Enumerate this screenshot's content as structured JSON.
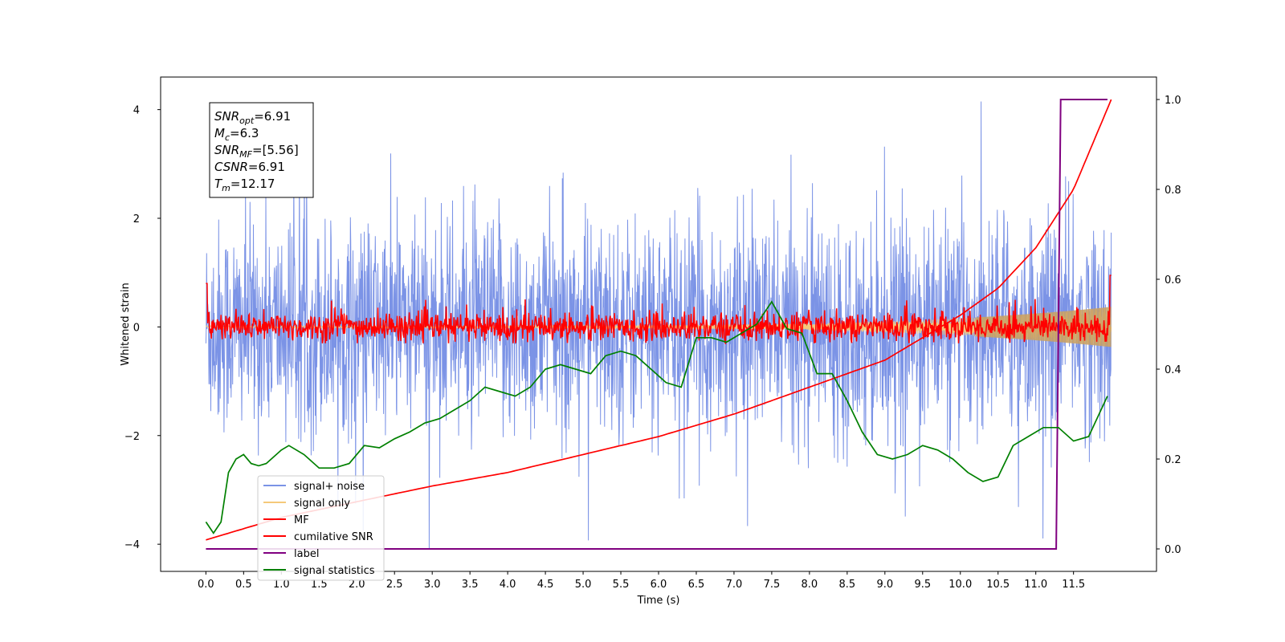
{
  "chart_data": {
    "type": "line",
    "xlabel": "Time (s)",
    "ylabel": "Whitened strain",
    "ylabel_right": "",
    "xlim": [
      -0.6,
      12.6
    ],
    "ylim": [
      -4.5,
      4.6
    ],
    "ylim_right": [
      -0.05,
      1.05
    ],
    "x_ticks": [
      "0.0",
      "0.5",
      "1.0",
      "1.5",
      "2.0",
      "2.5",
      "3.0",
      "3.5",
      "4.0",
      "4.5",
      "5.0",
      "5.5",
      "6.0",
      "6.5",
      "7.0",
      "7.5",
      "8.0",
      "8.5",
      "9.0",
      "9.5",
      "10.0",
      "10.5",
      "11.0",
      "11.5"
    ],
    "y_ticks": [
      "−4",
      "−2",
      "0",
      "2",
      "4"
    ],
    "y_ticks_right": [
      "0.0",
      "0.2",
      "0.4",
      "0.6",
      "0.8",
      "1.0"
    ],
    "grid": false,
    "legend_position": "lower-left",
    "stats_box": [
      {
        "sym": "SNR",
        "sub": "opt",
        "val": "=6.91"
      },
      {
        "sym": "M",
        "sub": "c",
        "val": "=6.3"
      },
      {
        "sym": "SNR",
        "sub": "MF",
        "val": "=[5.56]"
      },
      {
        "sym": "CSNR",
        "sub": "",
        "val": "=6.91"
      },
      {
        "sym": "T",
        "sub": "m",
        "val": "=12.17"
      }
    ],
    "series": [
      {
        "name": "signal+ noise",
        "color": "#7b93e6",
        "axis": "left",
        "kind": "noise",
        "x_range": [
          0.0,
          12.0
        ],
        "std": 1.3,
        "min": -4.1,
        "max": 4.15
      },
      {
        "name": "signal only",
        "color": "#f5c97a",
        "axis": "left",
        "kind": "chirp",
        "x_range": [
          0.0,
          12.0
        ],
        "amplitude_end": 0.35
      },
      {
        "name": "MF",
        "color": "#ff0000",
        "axis": "left",
        "kind": "noise",
        "x_range": [
          0.0,
          12.0
        ],
        "std": 0.13,
        "min": -0.3,
        "max": 0.8
      },
      {
        "name": "cumilative SNR",
        "color": "#ff0000",
        "axis": "right",
        "x": [
          0.0,
          1.0,
          2.0,
          3.0,
          4.0,
          5.0,
          6.0,
          7.0,
          8.0,
          9.0,
          10.0,
          10.5,
          11.0,
          11.5,
          12.0
        ],
        "y": [
          0.02,
          0.07,
          0.105,
          0.14,
          0.17,
          0.21,
          0.25,
          0.3,
          0.36,
          0.42,
          0.52,
          0.58,
          0.67,
          0.8,
          1.0
        ]
      },
      {
        "name": "label",
        "color": "#800080",
        "axis": "right",
        "x": [
          0.0,
          11.27,
          11.33,
          11.95
        ],
        "y": [
          0.0,
          0.0,
          1.0,
          1.0
        ]
      },
      {
        "name": "signal statistics",
        "color": "#008000",
        "axis": "right",
        "x": [
          0.0,
          0.1,
          0.2,
          0.3,
          0.4,
          0.5,
          0.6,
          0.7,
          0.8,
          1.0,
          1.1,
          1.3,
          1.5,
          1.7,
          1.9,
          2.1,
          2.3,
          2.5,
          2.7,
          2.9,
          3.1,
          3.3,
          3.5,
          3.7,
          3.9,
          4.1,
          4.3,
          4.5,
          4.7,
          4.9,
          5.1,
          5.3,
          5.5,
          5.7,
          5.9,
          6.1,
          6.3,
          6.5,
          6.7,
          6.9,
          7.1,
          7.3,
          7.5,
          7.7,
          7.9,
          8.1,
          8.3,
          8.5,
          8.7,
          8.9,
          9.1,
          9.3,
          9.5,
          9.7,
          9.9,
          10.1,
          10.3,
          10.5,
          10.7,
          10.9,
          11.1,
          11.3,
          11.5,
          11.7,
          11.95
        ],
        "y": [
          0.06,
          0.035,
          0.06,
          0.17,
          0.2,
          0.21,
          0.19,
          0.185,
          0.19,
          0.22,
          0.23,
          0.21,
          0.18,
          0.18,
          0.19,
          0.23,
          0.225,
          0.245,
          0.26,
          0.28,
          0.29,
          0.31,
          0.33,
          0.36,
          0.35,
          0.34,
          0.36,
          0.4,
          0.41,
          0.4,
          0.39,
          0.43,
          0.44,
          0.43,
          0.4,
          0.37,
          0.36,
          0.47,
          0.47,
          0.46,
          0.48,
          0.5,
          0.55,
          0.49,
          0.48,
          0.39,
          0.39,
          0.33,
          0.26,
          0.21,
          0.2,
          0.21,
          0.23,
          0.22,
          0.2,
          0.17,
          0.15,
          0.16,
          0.23,
          0.25,
          0.27,
          0.27,
          0.24,
          0.25,
          0.34
        ]
      }
    ]
  }
}
